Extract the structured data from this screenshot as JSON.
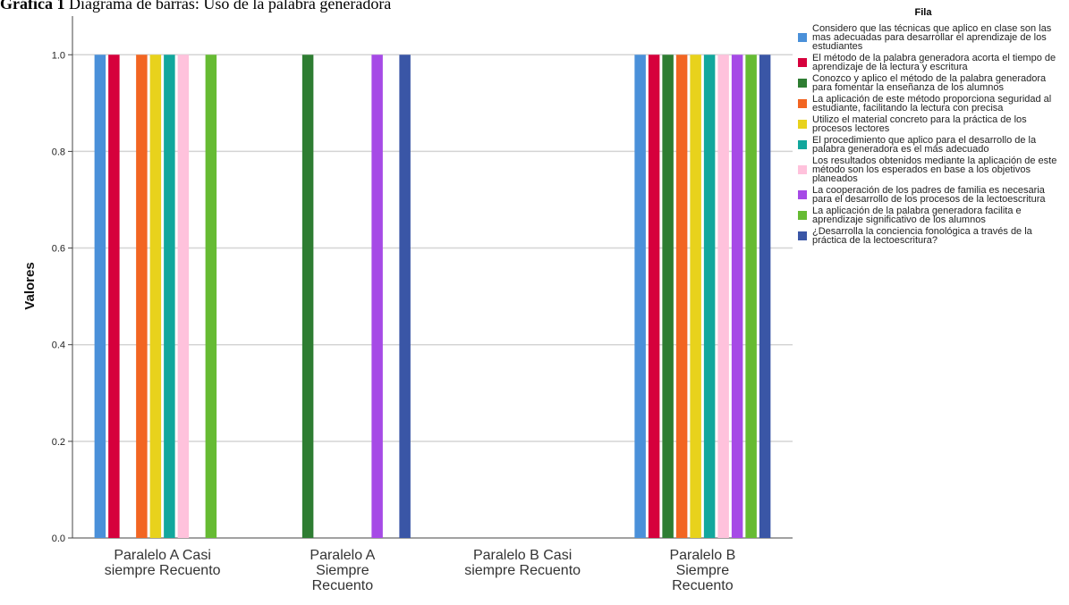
{
  "caption": {
    "number": "Gráfica 1",
    "text": "Diagrama de barras: Uso de la palabra generadora"
  },
  "chart_data": {
    "type": "bar",
    "ylabel": "Valores",
    "xlabel": "",
    "ylim": [
      0,
      1.08
    ],
    "yticks": [
      "0.0",
      "0.2",
      "0.4",
      "0.6",
      "0.8",
      "1.0"
    ],
    "grid": true,
    "legend_title": "Fila",
    "legend_position": "right",
    "categories": [
      [
        "Paralelo A Casi",
        "siempre Recuento"
      ],
      [
        "Paralelo A",
        "Siempre",
        "Recuento"
      ],
      [
        "Paralelo B Casi",
        "siempre Recuento"
      ],
      [
        "Paralelo B",
        "Siempre",
        "Recuento"
      ]
    ],
    "series": [
      {
        "name": "Considero que las técnicas que aplico en clase son las mas adecuadas para desarrollar el aprendizaje de los estudiantes",
        "color": "#4a90d9",
        "values": [
          1,
          0,
          0,
          1
        ]
      },
      {
        "name": "El método de la palabra generadora acorta el tiempo de aprendizaje  de la lectura y escritura",
        "color": "#d6003c",
        "values": [
          1,
          0,
          0,
          1
        ]
      },
      {
        "name": "Conozco y aplico el  método de la palabra generadora para fomentar la enseñanza de los alumnos",
        "color": "#2e7d32",
        "values": [
          0,
          1,
          0,
          1
        ]
      },
      {
        "name": "La aplicación de este método proporciona seguridad al estudiante, facilitando la lectura con precisa",
        "color": "#f26522",
        "values": [
          1,
          0,
          0,
          1
        ]
      },
      {
        "name": "Utilizo el material concreto para la práctica de los procesos lectores",
        "color": "#e8d21c",
        "values": [
          1,
          0,
          0,
          1
        ]
      },
      {
        "name": "El procedimiento que aplico para el desarrollo de la palabra generadora es el más adecuado",
        "color": "#12a79d",
        "values": [
          1,
          0,
          0,
          1
        ]
      },
      {
        "name": "Los resultados obtenidos mediante la aplicación de este método son los esperados en base a los objetivos planeados",
        "color": "#ffc2dc",
        "values": [
          1,
          0,
          0,
          1
        ]
      },
      {
        "name": "La cooperación de los padres de familia es necesaria para el desarrollo de los procesos de la lectoescritura",
        "color": "#a64ae6",
        "values": [
          0,
          1,
          0,
          1
        ]
      },
      {
        "name": "La aplicación de la palabra generadora facilita e aprendizaje significativo de los alumnos",
        "color": "#66bb33",
        "values": [
          1,
          0,
          0,
          1
        ]
      },
      {
        "name": "¿Desarrolla la conciencia fonológica a través de la práctica de la lectoescritura?",
        "color": "#3a56a6",
        "values": [
          0,
          1,
          0,
          1
        ]
      }
    ]
  }
}
